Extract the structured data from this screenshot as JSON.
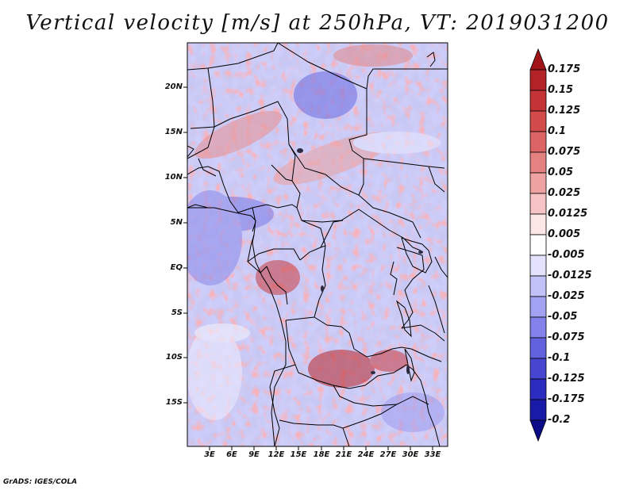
{
  "title": "Vertical velocity [m/s] at 250hPa, VT: 2019031200",
  "credit": "GrADS: IGES/COLA",
  "lat_labels": [
    "20N",
    "15N",
    "10N",
    "5N",
    "EQ",
    "5S",
    "10S",
    "15S"
  ],
  "lon_labels": [
    "3E",
    "6E",
    "9E",
    "12E",
    "15E",
    "18E",
    "21E",
    "24E",
    "27E",
    "30E",
    "33E"
  ],
  "colorbar": {
    "labels": [
      "0.175",
      "0.15",
      "0.125",
      "0.1",
      "0.075",
      "0.05",
      "0.025",
      "0.0125",
      "0.005",
      "-0.005",
      "-0.0125",
      "-0.025",
      "-0.05",
      "-0.075",
      "-0.1",
      "-0.125",
      "-0.175",
      "-0.2"
    ],
    "colors": [
      "#a01418",
      "#b22226",
      "#c43436",
      "#d24a4a",
      "#dc6464",
      "#e48282",
      "#eea2a2",
      "#f6c4c4",
      "#fce6e6",
      "#ffffff",
      "#e2e2fc",
      "#c2c2f8",
      "#a2a2f2",
      "#8282ea",
      "#6262de",
      "#4646d0",
      "#2c2cc0",
      "#1a1aa8",
      "#0c0c88"
    ]
  }
}
